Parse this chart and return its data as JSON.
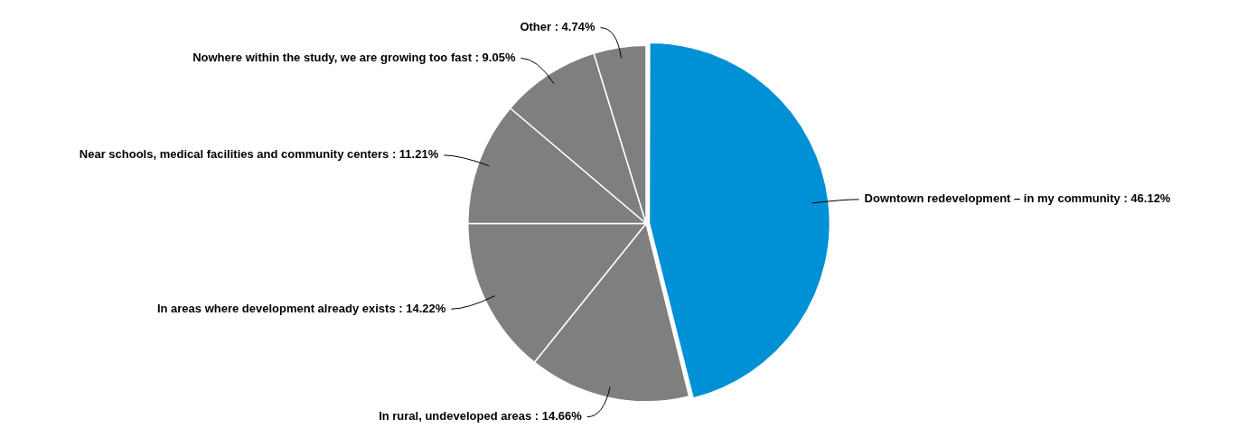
{
  "chart_data": {
    "type": "pie",
    "categories": [
      "Downtown redevelopment – in my community",
      "In rural, undeveloped areas",
      "In areas where development already exists",
      "Near schools, medical facilities and community centers",
      "Nowhere within the study, we are growing too fast",
      "Other"
    ],
    "values": [
      46.12,
      14.66,
      14.22,
      11.21,
      9.05,
      4.74
    ],
    "value_labels": [
      "46.12%",
      "14.66%",
      "14.22%",
      "11.21%",
      "9.05%",
      "4.74%"
    ],
    "colors": [
      "#0090d5",
      "#7f7f7f",
      "#7f7f7f",
      "#7f7f7f",
      "#7f7f7f",
      "#7f7f7f"
    ],
    "legend": false
  }
}
